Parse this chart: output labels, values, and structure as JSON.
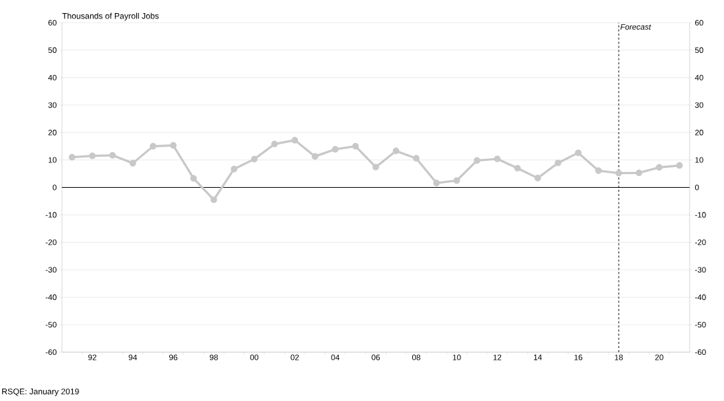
{
  "chart_data": {
    "type": "line",
    "ylabel": "Thousands of Payroll Jobs",
    "annotations": [
      "RSQE: January 2019"
    ],
    "x": [
      1991,
      1992,
      1993,
      1994,
      1995,
      1996,
      1997,
      1998,
      1999,
      2000,
      2001,
      2002,
      2003,
      2004,
      2005,
      2006,
      2007,
      2008,
      2009,
      2010,
      2011,
      2012,
      2013,
      2014,
      2015,
      2016,
      2017,
      2018,
      2019,
      2020,
      2021
    ],
    "series": [
      {
        "color": "#c8c8c8",
        "values": [
          11,
          11.5,
          11.7,
          8.8,
          15,
          15.3,
          3.3,
          -4.5,
          6.7,
          10.3,
          15.8,
          17.2,
          11.3,
          13.9,
          15,
          7.4,
          13.3,
          10.6,
          1.6,
          2.5,
          9.8,
          10.4,
          7,
          3.4,
          8.9,
          12.6,
          6.1,
          5.2,
          5.3,
          7.3,
          8
        ]
      }
    ],
    "marker": "circle",
    "xlim": [
      1990.5,
      2021.5
    ],
    "xticks": [
      {
        "value": 1992,
        "label": "92"
      },
      {
        "value": 1994,
        "label": "94"
      },
      {
        "value": 1996,
        "label": "96"
      },
      {
        "value": 1998,
        "label": "98"
      },
      {
        "value": 2000,
        "label": "00"
      },
      {
        "value": 2002,
        "label": "02"
      },
      {
        "value": 2004,
        "label": "04"
      },
      {
        "value": 2006,
        "label": "06"
      },
      {
        "value": 2008,
        "label": "08"
      },
      {
        "value": 2010,
        "label": "10"
      },
      {
        "value": 2012,
        "label": "12"
      },
      {
        "value": 2014,
        "label": "14"
      },
      {
        "value": 2016,
        "label": "16"
      },
      {
        "value": 2018,
        "label": "18"
      },
      {
        "value": 2020,
        "label": "20"
      },
      {
        "value": 1991.5,
        "label": null
      },
      {
        "value": 1992.5,
        "label": null
      },
      {
        "value": 1993.5,
        "label": null
      },
      {
        "value": 1994.5,
        "label": null
      },
      {
        "value": 1995.5,
        "label": null
      },
      {
        "value": 1996.5,
        "label": null
      },
      {
        "value": 1997.5,
        "label": null
      },
      {
        "value": 1998.5,
        "label": null
      },
      {
        "value": 1999.5,
        "label": null
      },
      {
        "value": 2000.5,
        "label": null
      },
      {
        "value": 2001.5,
        "label": null
      },
      {
        "value": 2002.5,
        "label": null
      },
      {
        "value": 2003.5,
        "label": null
      },
      {
        "value": 2004.5,
        "label": null
      },
      {
        "value": 2005.5,
        "label": null
      },
      {
        "value": 2006.5,
        "label": null
      },
      {
        "value": 2007.5,
        "label": null
      },
      {
        "value": 2008.5,
        "label": null
      },
      {
        "value": 2009.5,
        "label": null
      },
      {
        "value": 2010.5,
        "label": null
      },
      {
        "value": 2011.5,
        "label": null
      },
      {
        "value": 2012.5,
        "label": null
      },
      {
        "value": 2013.5,
        "label": null
      },
      {
        "value": 2014.5,
        "label": null
      },
      {
        "value": 2015.5,
        "label": null
      },
      {
        "value": 2016.5,
        "label": null
      },
      {
        "value": 2017.5,
        "label": null
      },
      {
        "value": 2018.5,
        "label": null
      },
      {
        "value": 2019.5,
        "label": null
      },
      {
        "value": 2020.5,
        "label": null
      }
    ],
    "ylim": [
      -60,
      60
    ],
    "yticks": [
      -60,
      -50,
      -40,
      -30,
      -20,
      -10,
      0,
      10,
      20,
      30,
      40,
      50,
      60
    ],
    "y2lim": [
      -60,
      60
    ],
    "y2ticks": [
      -60,
      -50,
      -40,
      -30,
      -20,
      -10,
      0,
      10,
      20,
      30,
      40,
      50,
      60
    ],
    "grid": "y",
    "ref_lines": [
      {
        "axis": "y",
        "value": 0,
        "color": "#000000",
        "line_style": "solid"
      },
      {
        "axis": "x",
        "value": 2018,
        "label": "Forecast",
        "color": "#000000",
        "line_style": "dashed"
      }
    ]
  }
}
